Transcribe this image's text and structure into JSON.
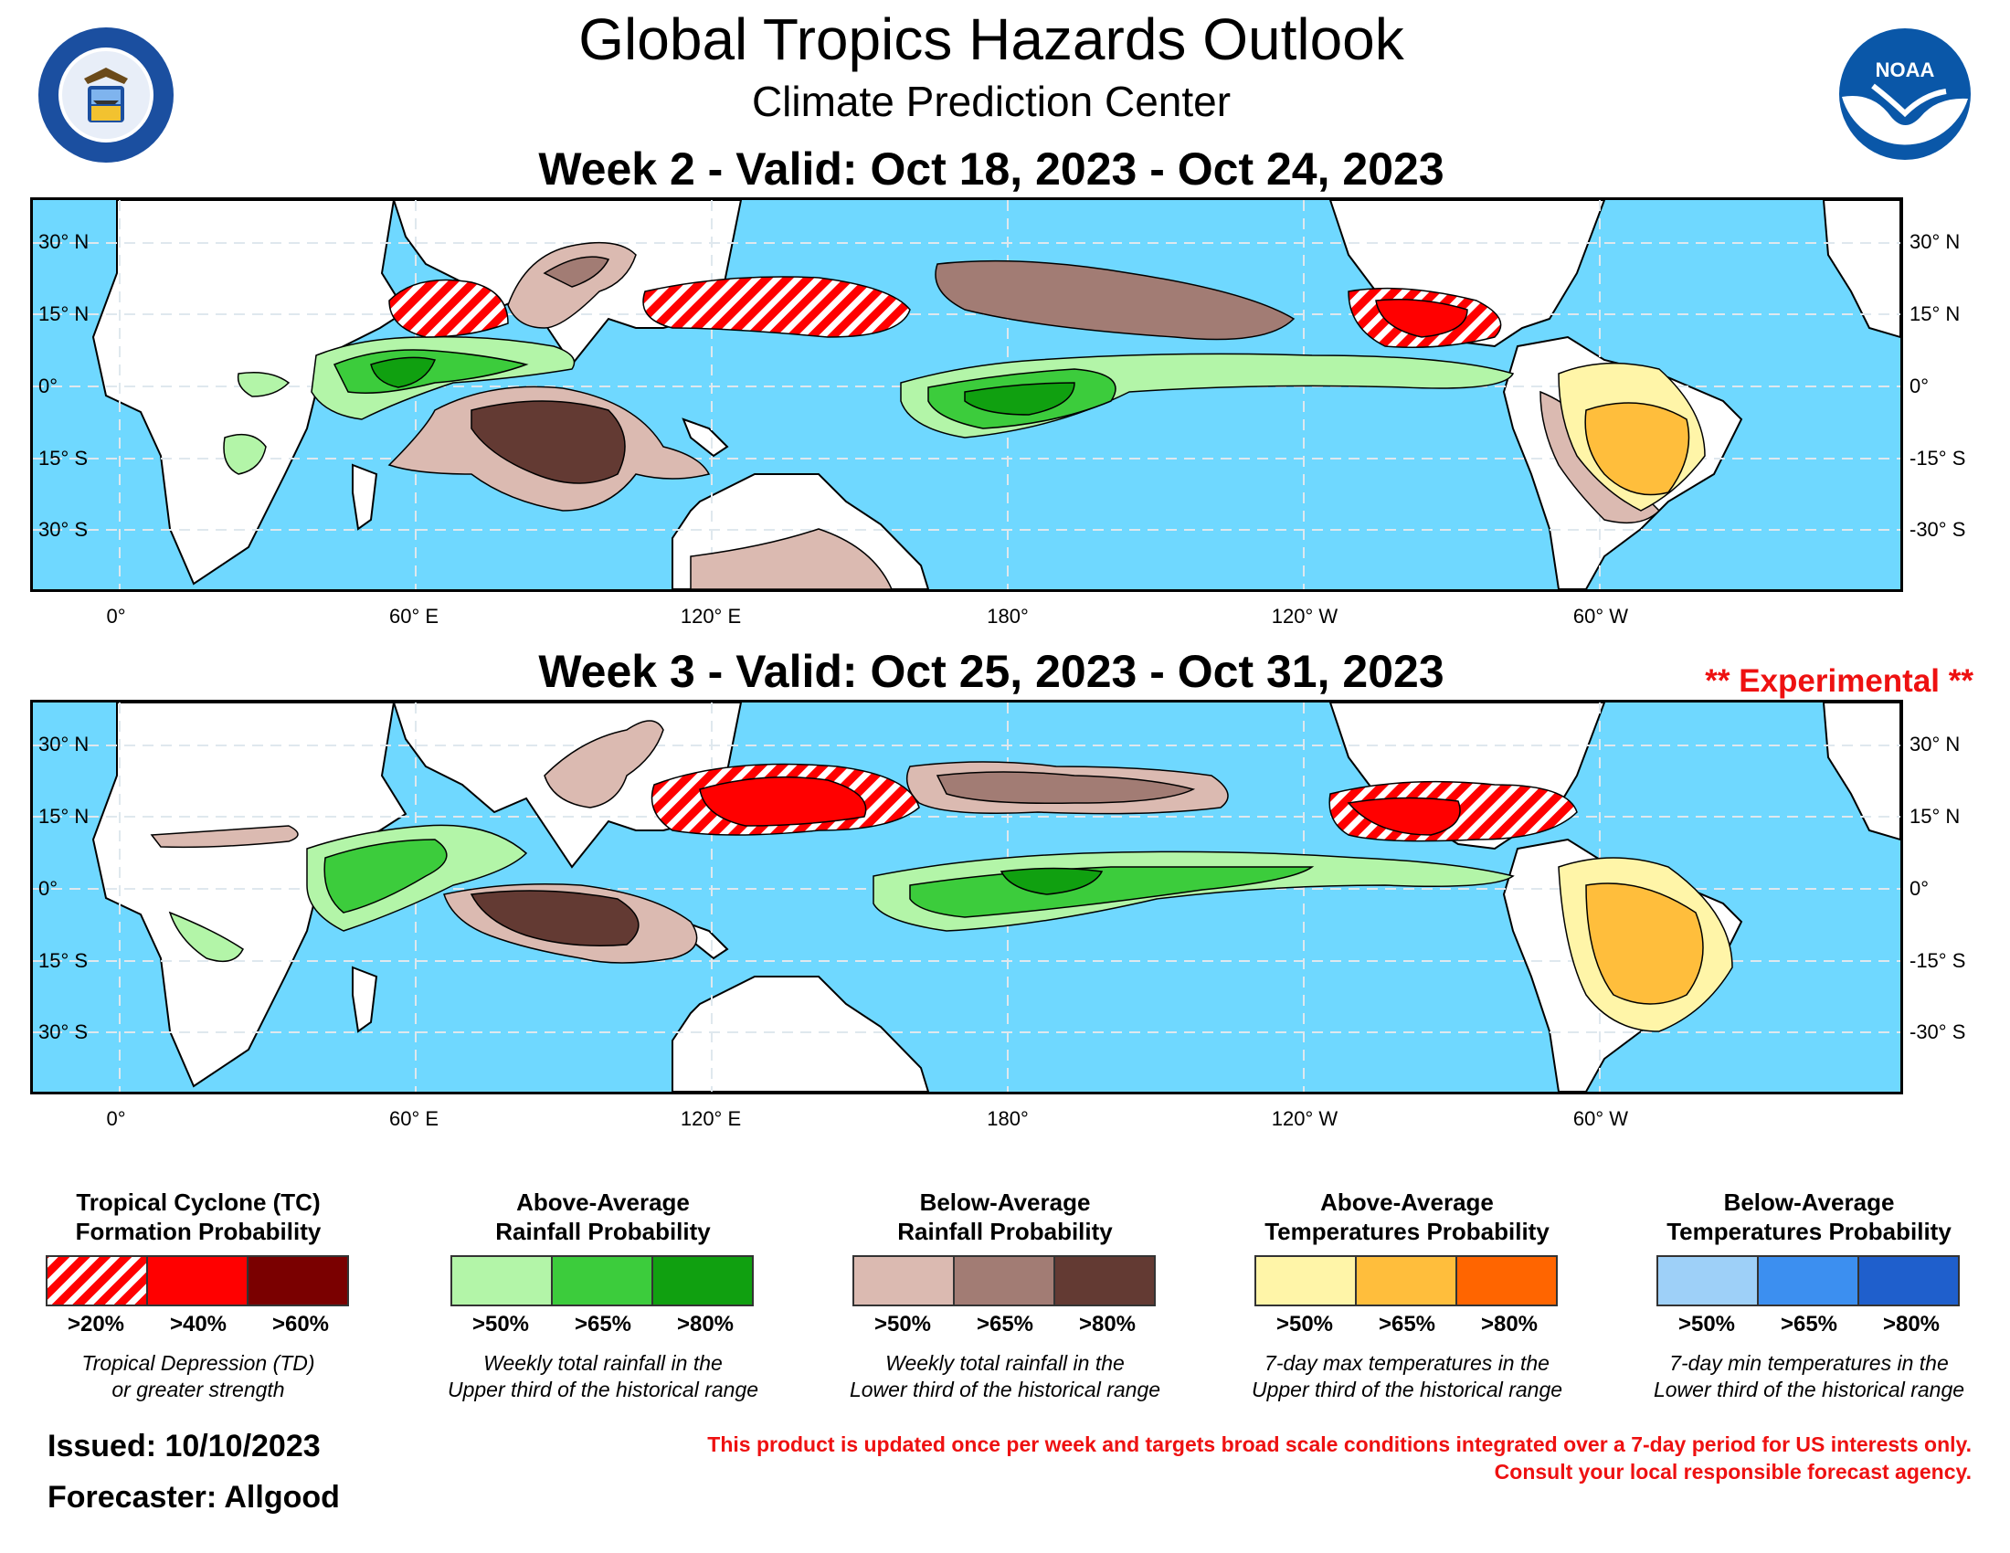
{
  "header": {
    "title": "Global Tropics Hazards Outlook",
    "subtitle": "Climate Prediction Center"
  },
  "logos": {
    "doc_seal": "DEPARTMENT OF COMMERCE · UNITED STATES OF AMERICA",
    "noaa": "NOAA"
  },
  "colors": {
    "ocean": "#6fd8ff",
    "land": "#ffffff",
    "tc_20": "#ff0000",
    "tc_40": "#ff0000",
    "tc_60": "#7a0000",
    "rain_above_50": "#b3f5a8",
    "rain_above_65": "#3ccc3c",
    "rain_above_80": "#10a010",
    "rain_below_50": "#dbbab1",
    "rain_below_65": "#a27c74",
    "rain_below_80": "#633a33",
    "temp_above_50": "#fff5a8",
    "temp_above_65": "#ffbe3c",
    "temp_above_80": "#ff6500",
    "temp_below_50": "#9ed0f8",
    "temp_below_65": "#3c8ff0",
    "temp_below_80": "#1f5fcc",
    "warning_text": "#ee1111"
  },
  "axes": {
    "longitude_labels": [
      "0°",
      "60° E",
      "120° E",
      "180°",
      "120° W",
      "60° W"
    ],
    "latitude_labels_left": [
      "30° N",
      "15° N",
      "0°",
      "15° S",
      "30° S"
    ],
    "latitude_labels_right": [
      "30° N",
      "15° N",
      "0°",
      "-15° S",
      "-30° S"
    ]
  },
  "maps": [
    {
      "title": "Week 2 - Valid: Oct 18, 2023 - Oct 24, 2023",
      "experimental_note": ""
    },
    {
      "title": "Week 3 - Valid: Oct 25, 2023 - Oct 31, 2023",
      "experimental_note": "** Experimental **"
    }
  ],
  "legend": [
    {
      "heading_line1": "Tropical Cyclone (TC)",
      "heading_line2": "Formation Probability",
      "thresholds": [
        ">20%",
        ">40%",
        ">60%"
      ],
      "desc_line1": "Tropical Depression (TD)",
      "desc_line2": "or greater strength",
      "swatch_colors": [
        "#ff0000",
        "#ff0000",
        "#7a0000"
      ],
      "hatched_first": true
    },
    {
      "heading_line1": "Above-Average",
      "heading_line2": "Rainfall Probability",
      "thresholds": [
        ">50%",
        ">65%",
        ">80%"
      ],
      "desc_line1": "Weekly total rainfall in the",
      "desc_line2": "Upper third of the historical range",
      "swatch_colors": [
        "#b3f5a8",
        "#3ccc3c",
        "#10a010"
      ],
      "hatched_first": false
    },
    {
      "heading_line1": "Below-Average",
      "heading_line2": "Rainfall Probability",
      "thresholds": [
        ">50%",
        ">65%",
        ">80%"
      ],
      "desc_line1": "Weekly total rainfall in the",
      "desc_line2": "Lower third of the historical range",
      "swatch_colors": [
        "#dbbab1",
        "#a27c74",
        "#633a33"
      ],
      "hatched_first": false
    },
    {
      "heading_line1": "Above-Average",
      "heading_line2": "Temperatures Probability",
      "thresholds": [
        ">50%",
        ">65%",
        ">80%"
      ],
      "desc_line1": "7-day max temperatures in the",
      "desc_line2": "Upper third of the historical range",
      "swatch_colors": [
        "#fff5a8",
        "#ffbe3c",
        "#ff6500"
      ],
      "hatched_first": false
    },
    {
      "heading_line1": "Below-Average",
      "heading_line2": "Temperatures Probability",
      "thresholds": [
        ">50%",
        ">65%",
        ">80%"
      ],
      "desc_line1": "7-day min temperatures in the",
      "desc_line2": "Lower third of the historical range",
      "swatch_colors": [
        "#9ed0f8",
        "#3c8ff0",
        "#1f5fcc"
      ],
      "hatched_first": false
    }
  ],
  "footer": {
    "issued": "Issued: 10/10/2023",
    "forecaster": "Forecaster: Allgood",
    "disclaimer_line1": "This product is updated once per week and targets broad scale conditions integrated over a 7-day period for US interests only.",
    "disclaimer_line2": "Consult your local responsible forecast agency."
  }
}
